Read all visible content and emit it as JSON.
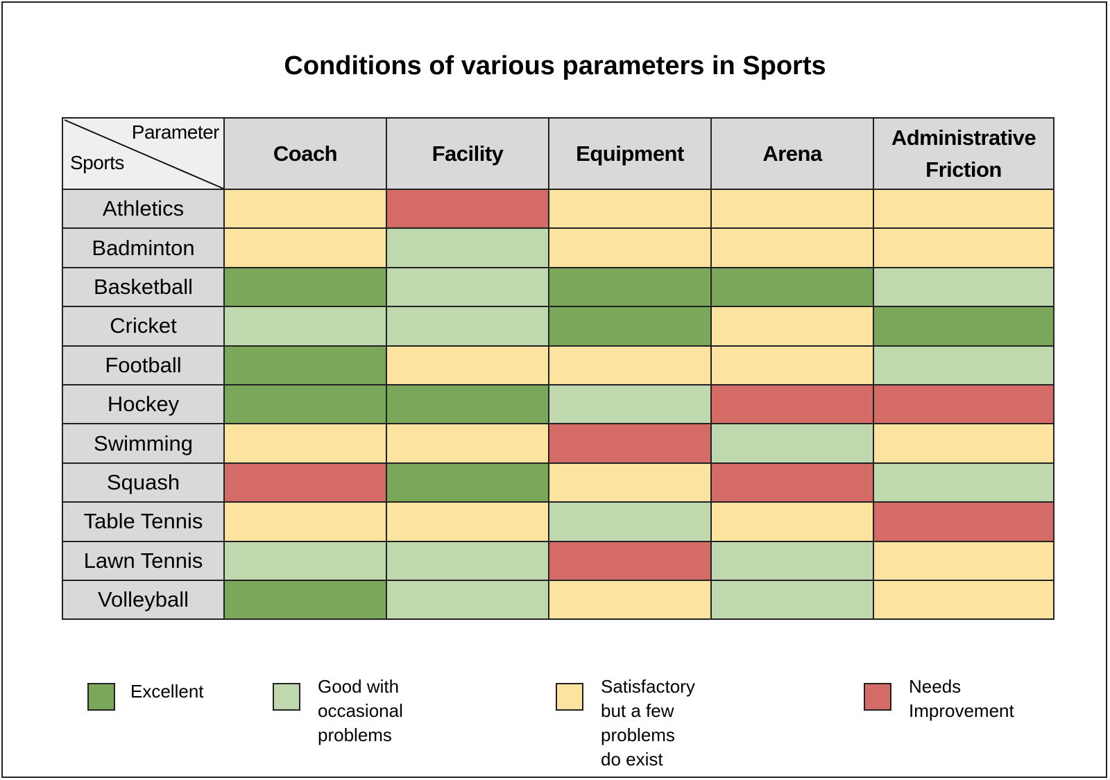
{
  "chart_data": {
    "type": "heatmap",
    "title": "Conditions of various parameters in Sports",
    "corner_labels": {
      "columns": "Parameter",
      "rows": "Sports"
    },
    "columns": [
      "Coach",
      "Facility",
      "Equipment",
      "Arena",
      "Administrative Friction"
    ],
    "rows": [
      "Athletics",
      "Badminton",
      "Basketball",
      "Cricket",
      "Football",
      "Hockey",
      "Swimming",
      "Squash",
      "Table Tennis",
      "Lawn Tennis",
      "Volleyball"
    ],
    "legend": [
      {
        "key": "E",
        "label": "Excellent",
        "color": "#7aa75a"
      },
      {
        "key": "G",
        "label": "Good with occasional\nproblems",
        "color": "#bfd8ae"
      },
      {
        "key": "S",
        "label": "Satisfactory but a few\nproblems do exist",
        "color": "#fce4a0"
      },
      {
        "key": "N",
        "label": "Needs\nImprovement",
        "color": "#d46b67"
      }
    ],
    "legend_placement": "bottom",
    "values": [
      [
        "S",
        "N",
        "S",
        "S",
        "S"
      ],
      [
        "S",
        "G",
        "S",
        "S",
        "S"
      ],
      [
        "E",
        "G",
        "E",
        "E",
        "G"
      ],
      [
        "G",
        "G",
        "E",
        "S",
        "E"
      ],
      [
        "E",
        "S",
        "S",
        "S",
        "G"
      ],
      [
        "E",
        "E",
        "G",
        "N",
        "N"
      ],
      [
        "S",
        "S",
        "N",
        "G",
        "S"
      ],
      [
        "N",
        "E",
        "S",
        "N",
        "G"
      ],
      [
        "S",
        "S",
        "G",
        "S",
        "N"
      ],
      [
        "G",
        "G",
        "N",
        "G",
        "S"
      ],
      [
        "E",
        "G",
        "S",
        "G",
        "S"
      ]
    ],
    "header_color": "#d9d9d9",
    "corner_color": "#efefef"
  }
}
